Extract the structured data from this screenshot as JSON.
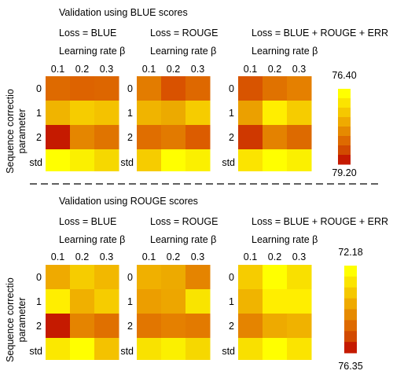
{
  "y_axis_label": [
    "Sequence correctio",
    "parameter"
  ],
  "std_label": "std",
  "lr_label": "Learning rate β",
  "col_labels": [
    "0.1",
    "0.2",
    "0.3"
  ],
  "row_labels": [
    "0",
    "1",
    "2"
  ],
  "chart_data": [
    {
      "type": "heatmap",
      "title": "Validation using BLUE scores",
      "colorbar": {
        "top_label": "76.40",
        "bottom_label": "79.20",
        "colors": [
          "#ffff00",
          "#fbe400",
          "#f5c800",
          "#efaa00",
          "#e68a00",
          "#de6a00",
          "#d24a00",
          "#c51a00"
        ]
      },
      "panels": [
        {
          "title": "Loss = BLUE",
          "cells": [
            [
              "#de6a00",
              "#dd6300",
              "#dd6600"
            ],
            [
              "#f0b400",
              "#f6cc00",
              "#f4c200"
            ],
            [
              "#c51a00",
              "#e58600",
              "#e07400"
            ]
          ],
          "std": [
            "#ffff00",
            "#fbf000",
            "#f6d800"
          ]
        },
        {
          "title": "Loss = ROUGE",
          "cells": [
            [
              "#e37c00",
              "#d95200",
              "#de6800"
            ],
            [
              "#f0b400",
              "#ecaa00",
              "#f6cc00"
            ],
            [
              "#e06e00",
              "#e27a00",
              "#dc5c00"
            ]
          ],
          "std": [
            "#f6cc00",
            "#ffff00",
            "#fbf000"
          ]
        },
        {
          "title": "Loss = BLUE + ROUGE + ERR",
          "cells": [
            [
              "#d85400",
              "#e07200",
              "#e58000"
            ],
            [
              "#eba000",
              "#ffee00",
              "#f6cc00"
            ],
            [
              "#cf3800",
              "#e48200",
              "#dd6a00"
            ]
          ],
          "std": [
            "#fbe400",
            "#ffff00",
            "#fbf000"
          ]
        }
      ]
    },
    {
      "type": "heatmap",
      "title": "Validation using ROUGE scores",
      "colorbar": {
        "top_label": "72.18",
        "bottom_label": "76.35",
        "colors": [
          "#ffff00",
          "#fbe400",
          "#f5c800",
          "#efaa00",
          "#e68a00",
          "#de6a00",
          "#d24a00",
          "#c51a00"
        ]
      },
      "panels": [
        {
          "title": "Loss = BLUE",
          "cells": [
            [
              "#efaa00",
              "#f6cc00",
              "#f2b800"
            ],
            [
              "#ffee00",
              "#f0b000",
              "#f6cc00"
            ],
            [
              "#c51a00",
              "#e58400",
              "#e07000"
            ]
          ],
          "std": [
            "#fbe800",
            "#ffff00",
            "#f4c200"
          ]
        },
        {
          "title": "Loss = ROUGE",
          "cells": [
            [
              "#f0b000",
              "#edaa00",
              "#e58400"
            ],
            [
              "#ec9e00",
              "#eda600",
              "#f9e400"
            ],
            [
              "#e27600",
              "#e58000",
              "#e37a00"
            ]
          ],
          "std": [
            "#f9e200",
            "#fbf000",
            "#f6d800"
          ]
        },
        {
          "title": "Loss = BLUE + ROUGE + ERR",
          "cells": [
            [
              "#f6cc00",
              "#ffff00",
              "#f9e000"
            ],
            [
              "#f0b400",
              "#ffee00",
              "#ffee00"
            ],
            [
              "#e58400",
              "#eeaa00",
              "#f0b200"
            ]
          ],
          "std": [
            "#f9e000",
            "#ffff00",
            "#fbe400"
          ]
        }
      ]
    }
  ]
}
